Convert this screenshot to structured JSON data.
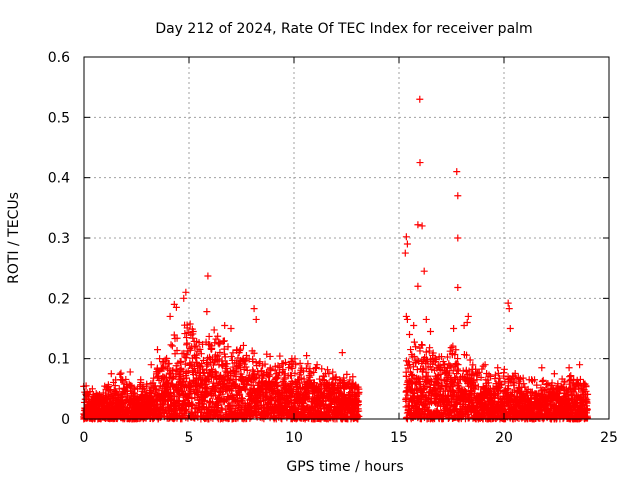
{
  "chart_data": {
    "type": "scatter",
    "title": "Day 212 of 2024, Rate Of TEC Index for receiver palm",
    "xlabel": "GPS time / hours",
    "ylabel": "ROTI / TECUs",
    "xlim": [
      0,
      25
    ],
    "ylim": [
      0,
      0.6
    ],
    "xticks": [
      "0",
      "5",
      "10",
      "15",
      "20",
      "25"
    ],
    "yticks": [
      "0",
      "0.1",
      "0.2",
      "0.3",
      "0.4",
      "0.5",
      "0.6"
    ],
    "grid": true,
    "marker": "+",
    "color": "#ff0000",
    "data_gap_hours": [
      13.1,
      15.3
    ],
    "points": [
      [
        15.99,
        0.53
      ],
      [
        16.0,
        0.425
      ],
      [
        17.75,
        0.41
      ],
      [
        17.8,
        0.37
      ],
      [
        15.9,
        0.322
      ],
      [
        16.1,
        0.32
      ],
      [
        17.8,
        0.3
      ],
      [
        15.35,
        0.302
      ],
      [
        15.4,
        0.29
      ],
      [
        15.3,
        0.275
      ],
      [
        16.2,
        0.245
      ],
      [
        5.9,
        0.237
      ],
      [
        15.9,
        0.22
      ],
      [
        17.8,
        0.218
      ],
      [
        4.85,
        0.21
      ],
      [
        4.75,
        0.2
      ],
      [
        4.3,
        0.19
      ],
      [
        4.4,
        0.185
      ],
      [
        20.2,
        0.192
      ],
      [
        20.25,
        0.183
      ],
      [
        8.1,
        0.183
      ],
      [
        8.2,
        0.165
      ],
      [
        5.85,
        0.178
      ],
      [
        18.3,
        0.17
      ],
      [
        18.25,
        0.16
      ],
      [
        15.35,
        0.17
      ],
      [
        15.4,
        0.165
      ],
      [
        16.3,
        0.165
      ],
      [
        12.3,
        0.11
      ],
      [
        4.1,
        0.17
      ],
      [
        6.7,
        0.155
      ],
      [
        7.0,
        0.15
      ],
      [
        5.2,
        0.145
      ],
      [
        15.5,
        0.14
      ],
      [
        15.7,
        0.155
      ],
      [
        16.5,
        0.145
      ],
      [
        17.6,
        0.15
      ],
      [
        18.1,
        0.155
      ],
      [
        10.6,
        0.105
      ],
      [
        9.9,
        0.1
      ],
      [
        11.1,
        0.09
      ],
      [
        11.5,
        0.075
      ],
      [
        12.8,
        0.07
      ],
      [
        19.1,
        0.09
      ],
      [
        19.7,
        0.085
      ],
      [
        20.3,
        0.15
      ],
      [
        21.2,
        0.065
      ],
      [
        21.8,
        0.085
      ],
      [
        22.4,
        0.075
      ],
      [
        23.1,
        0.085
      ],
      [
        23.6,
        0.09
      ],
      [
        23.9,
        0.055
      ],
      [
        1.3,
        0.075
      ],
      [
        2.2,
        0.078
      ],
      [
        0.1,
        0.055
      ],
      [
        0.4,
        0.05
      ],
      [
        2.7,
        0.065
      ],
      [
        3.2,
        0.09
      ],
      [
        3.6,
        0.1
      ],
      [
        3.5,
        0.115
      ]
    ],
    "envelope": [
      [
        0.0,
        0.045
      ],
      [
        0.5,
        0.04
      ],
      [
        1.0,
        0.05
      ],
      [
        1.5,
        0.06
      ],
      [
        2.0,
        0.06
      ],
      [
        2.5,
        0.045
      ],
      [
        3.0,
        0.06
      ],
      [
        3.5,
        0.085
      ],
      [
        4.0,
        0.11
      ],
      [
        4.5,
        0.13
      ],
      [
        5.0,
        0.135
      ],
      [
        5.5,
        0.12
      ],
      [
        6.0,
        0.13
      ],
      [
        6.5,
        0.12
      ],
      [
        7.0,
        0.12
      ],
      [
        7.5,
        0.105
      ],
      [
        8.0,
        0.1
      ],
      [
        8.5,
        0.09
      ],
      [
        9.0,
        0.085
      ],
      [
        9.5,
        0.085
      ],
      [
        10.0,
        0.085
      ],
      [
        10.5,
        0.08
      ],
      [
        11.0,
        0.075
      ],
      [
        11.5,
        0.07
      ],
      [
        12.0,
        0.07
      ],
      [
        12.5,
        0.065
      ],
      [
        13.0,
        0.06
      ],
      [
        15.3,
        0.09
      ],
      [
        15.5,
        0.1
      ],
      [
        16.0,
        0.12
      ],
      [
        16.5,
        0.1
      ],
      [
        17.0,
        0.09
      ],
      [
        17.5,
        0.1
      ],
      [
        18.0,
        0.1
      ],
      [
        18.5,
        0.08
      ],
      [
        19.0,
        0.07
      ],
      [
        19.5,
        0.06
      ],
      [
        20.0,
        0.07
      ],
      [
        20.5,
        0.065
      ],
      [
        21.0,
        0.05
      ],
      [
        21.5,
        0.055
      ],
      [
        22.0,
        0.06
      ],
      [
        22.5,
        0.055
      ],
      [
        23.0,
        0.06
      ],
      [
        23.5,
        0.065
      ],
      [
        24.0,
        0.045
      ]
    ]
  }
}
